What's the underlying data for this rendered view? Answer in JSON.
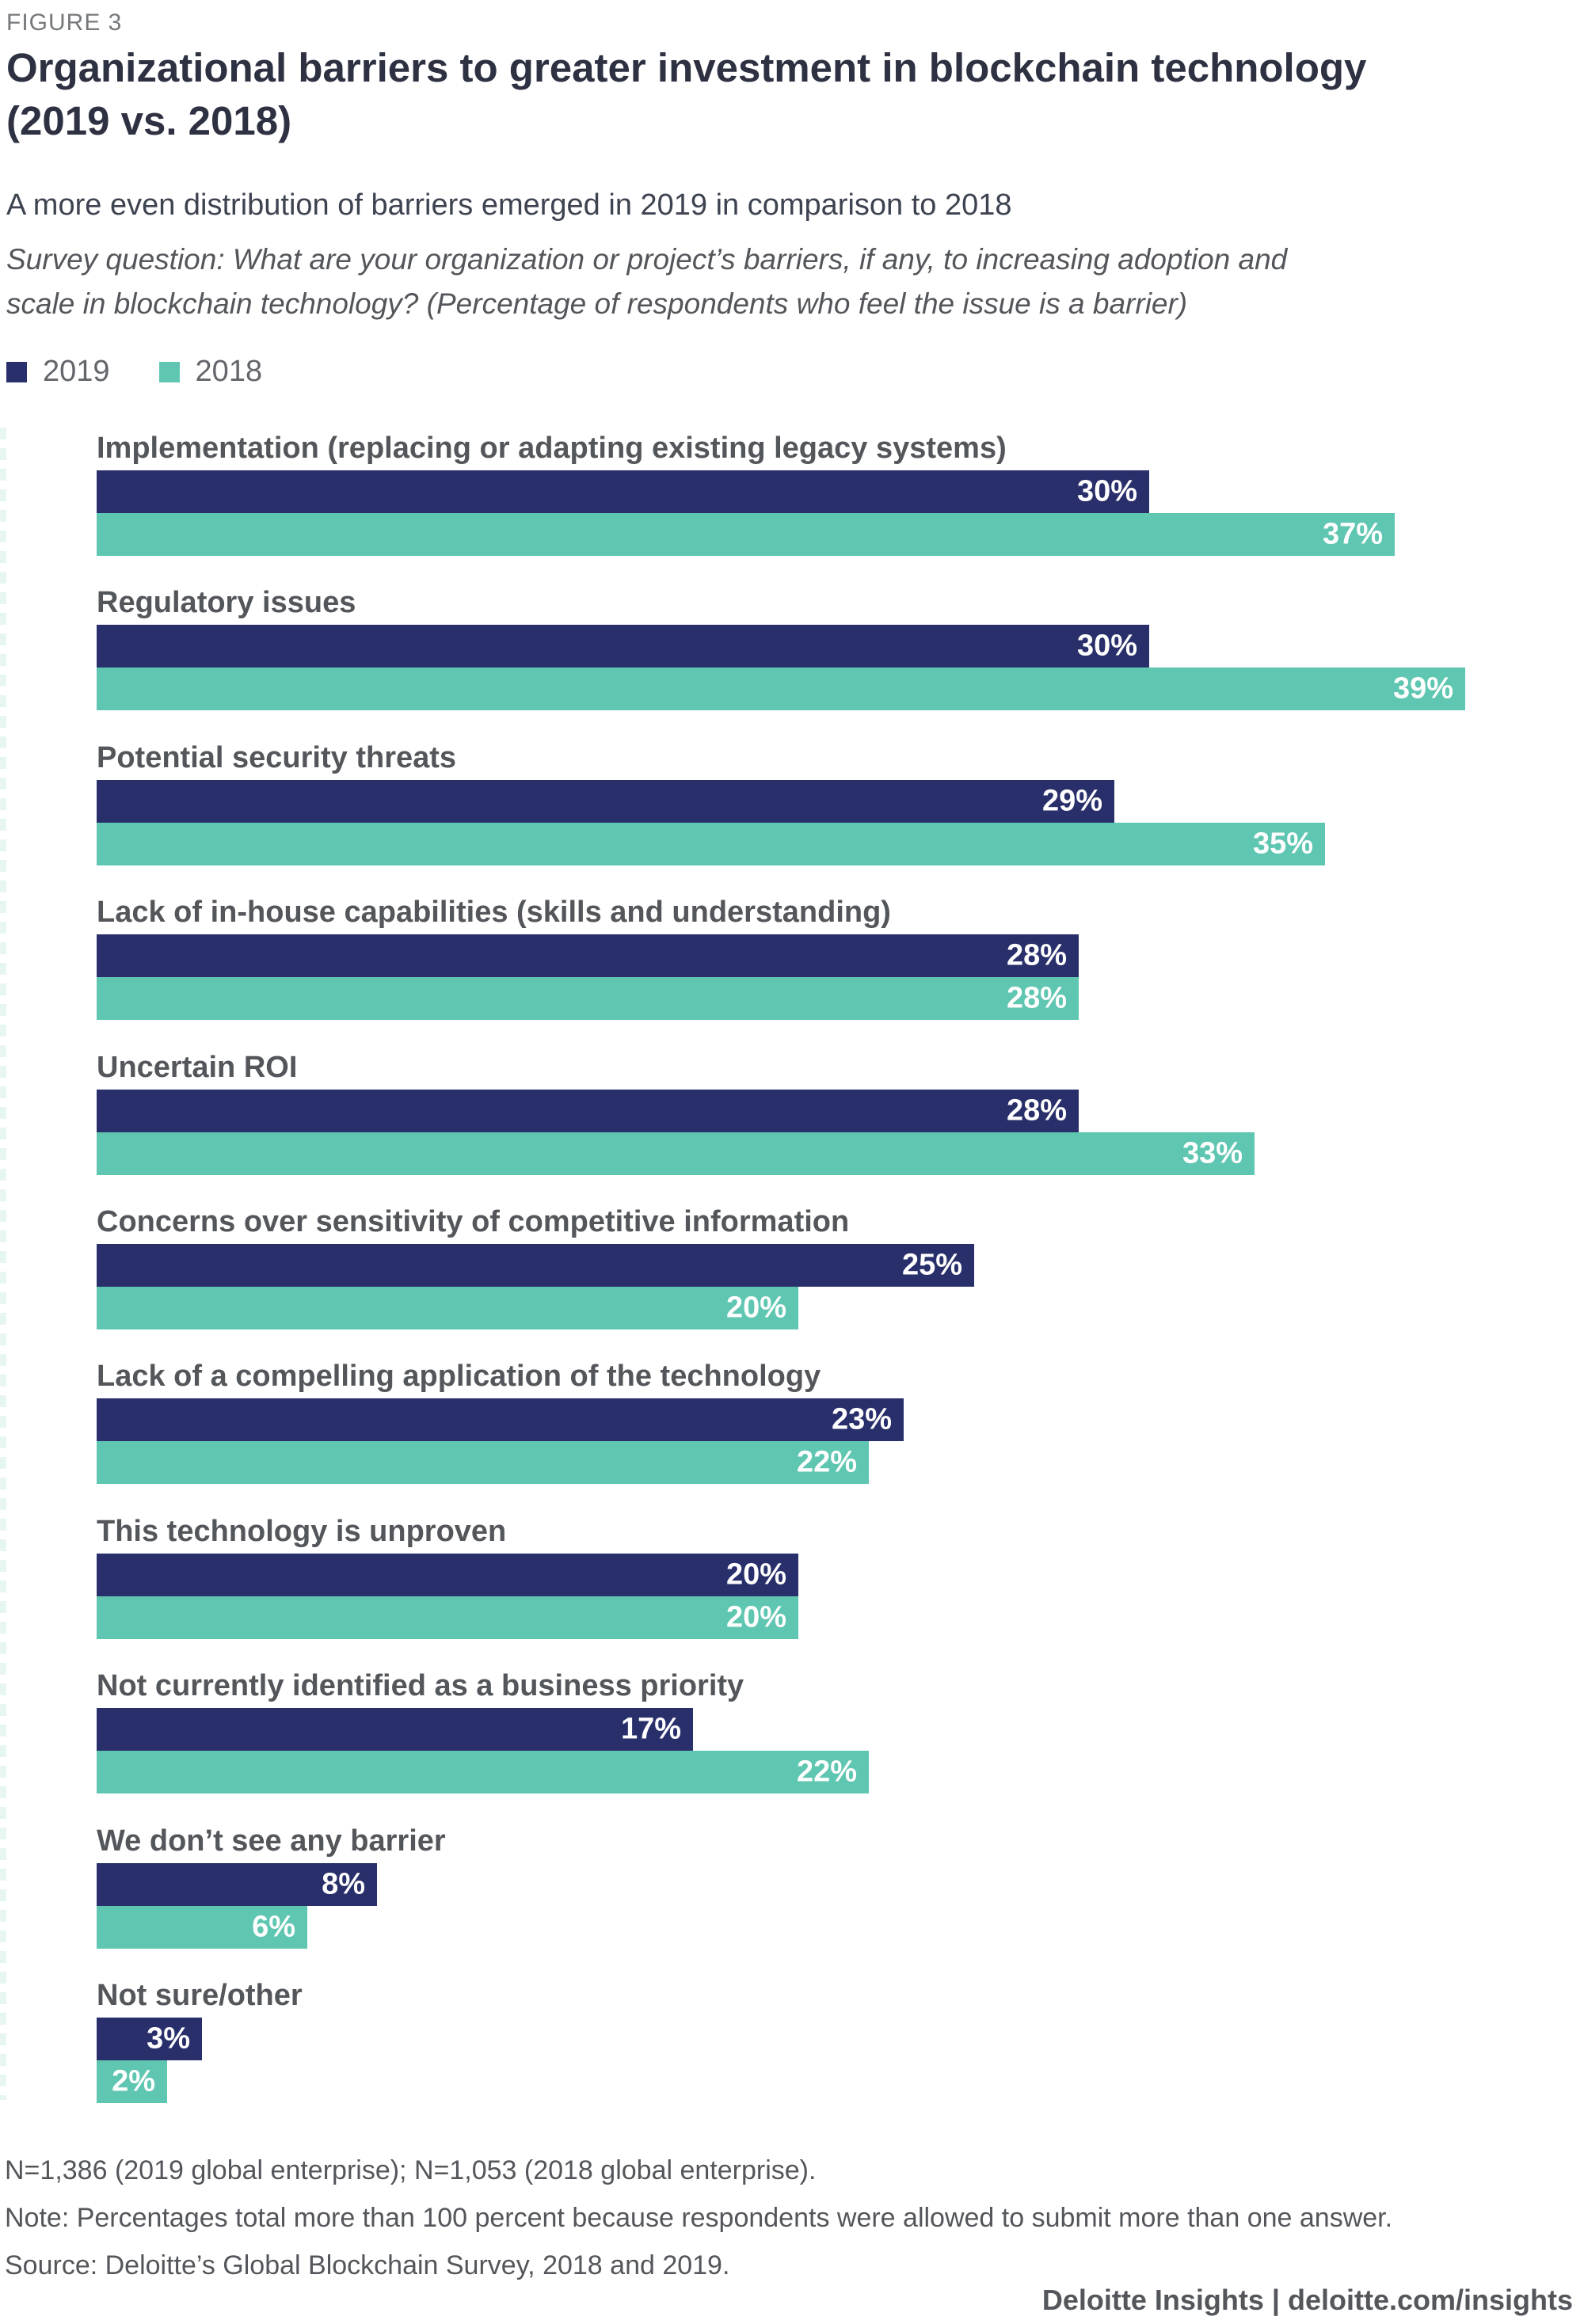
{
  "figure_label": "FIGURE 3",
  "title_line1": "Organizational barriers to greater investment in blockchain technology",
  "title_line2": "(2019 vs. 2018)",
  "subtitle": "A more even distribution of barriers emerged in 2019 in comparison to 2018",
  "survey_question_line1": "Survey question: What are your organization or project’s barriers, if any, to increasing adoption and",
  "survey_question_line2": "scale in blockchain technology? (Percentage of respondents who feel the issue is a barrier)",
  "legend": {
    "items": [
      {
        "label": "2019",
        "color": "#292f6a"
      },
      {
        "label": "2018",
        "color": "#5fc6b1"
      }
    ]
  },
  "chart_data": {
    "type": "bar",
    "orientation": "horizontal",
    "title": "Organizational barriers to greater investment in blockchain technology (2019 vs. 2018)",
    "xlabel": "",
    "ylabel": "",
    "value_suffix": "%",
    "xlim": [
      0,
      39
    ],
    "grid": false,
    "legend_position": "top-left",
    "categories": [
      "Implementation (replacing or adapting existing legacy systems)",
      "Regulatory issues",
      "Potential security threats",
      "Lack of in-house capabilities (skills and understanding)",
      "Uncertain ROI",
      "Concerns over sensitivity of competitive information",
      "Lack of a compelling application of the technology",
      "This technology is unproven",
      "Not currently identified as a business priority",
      "We don’t see any barrier",
      "Not sure/other"
    ],
    "series": [
      {
        "name": "2019",
        "color": "#292f6a",
        "values": [
          30,
          30,
          29,
          28,
          28,
          25,
          23,
          20,
          17,
          8,
          3
        ]
      },
      {
        "name": "2018",
        "color": "#5fc6b1",
        "values": [
          37,
          39,
          35,
          28,
          33,
          20,
          22,
          20,
          22,
          6,
          2
        ]
      }
    ]
  },
  "footer": {
    "n_line": "N=1,386 (2019 global enterprise); N=1,053 (2018 global enterprise).",
    "note_line": "Note: Percentages total more than 100 percent because respondents were allowed to submit more than one answer.",
    "source_line": "Source: Deloitte’s Global Blockchain Survey, 2018 and 2019."
  },
  "branding": "Deloitte Insights | deloitte.com/insights"
}
